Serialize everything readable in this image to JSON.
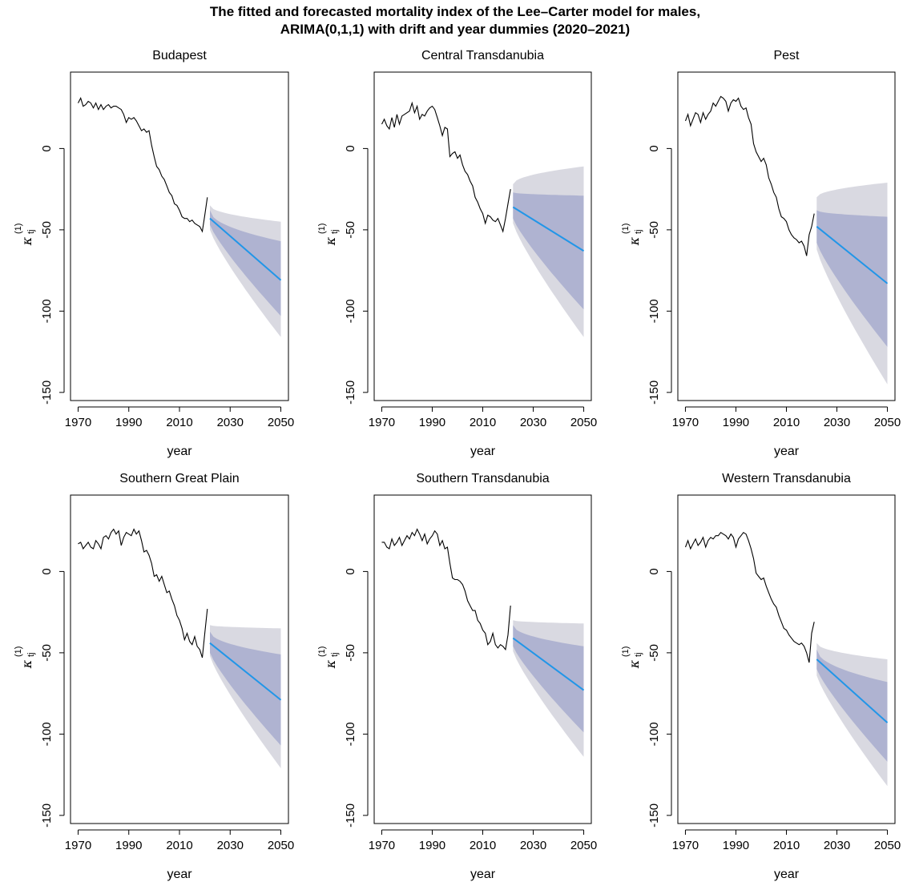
{
  "figure": {
    "title_line1": "The fitted and forecasted mortality index of the Lee–Carter model for males,",
    "title_line2": "ARIMA(0,1,1) with drift and year dummies (2020–2021)"
  },
  "colors": {
    "outer_band": "#d9d9e1",
    "inner_band": "#afb3d1",
    "forecast_line": "#2196e8",
    "fitted_line": "#000000"
  },
  "chart_data": [
    {
      "type": "line",
      "title": "Budapest",
      "xlabel": "year",
      "ylabel_main": "κ",
      "ylabel_super": "(1)",
      "ylabel_sub": "tj",
      "xlim": [
        1967,
        2053
      ],
      "ylim": [
        -155,
        47
      ],
      "xticks": [
        1970,
        1990,
        2010,
        2030,
        2050
      ],
      "yticks": [
        0,
        -50,
        -100,
        -150
      ],
      "fitted": {
        "x": [
          1970,
          1971,
          1972,
          1973,
          1974,
          1975,
          1976,
          1977,
          1978,
          1979,
          1980,
          1981,
          1982,
          1983,
          1984,
          1985,
          1986,
          1987,
          1988,
          1989,
          1990,
          1991,
          1992,
          1993,
          1994,
          1995,
          1996,
          1997,
          1998,
          1999,
          2000,
          2001,
          2002,
          2003,
          2004,
          2005,
          2006,
          2007,
          2008,
          2009,
          2010,
          2011,
          2012,
          2013,
          2014,
          2015,
          2016,
          2017,
          2018,
          2019,
          2020,
          2021
        ],
        "y": [
          28,
          31,
          26,
          27,
          29,
          28,
          25,
          28,
          24,
          27,
          24,
          26,
          27,
          25,
          26,
          26,
          25,
          24,
          21,
          16,
          19,
          18,
          19,
          17,
          14,
          11,
          12,
          10,
          11,
          2,
          -5,
          -11,
          -13,
          -17,
          -19,
          -23,
          -27,
          -29,
          -34,
          -35,
          -38,
          -42,
          -43,
          -43,
          -45,
          -44,
          -46,
          -47,
          -48,
          -51,
          -41,
          -30
        ]
      },
      "forecast": {
        "x": [
          2022,
          2050
        ],
        "mean": [
          -43,
          -81
        ],
        "inner_upper": [
          -38,
          -57
        ],
        "inner_lower": [
          -47,
          -103
        ],
        "outer_upper": [
          -35,
          -45
        ],
        "outer_lower": [
          -50,
          -116
        ]
      }
    },
    {
      "type": "line",
      "title": "Central Transdanubia",
      "xlabel": "year",
      "ylabel_main": "κ",
      "ylabel_super": "(1)",
      "ylabel_sub": "tj",
      "xlim": [
        1967,
        2053
      ],
      "ylim": [
        -155,
        47
      ],
      "xticks": [
        1970,
        1990,
        2010,
        2030,
        2050
      ],
      "yticks": [
        0,
        -50,
        -100,
        -150
      ],
      "fitted": {
        "x": [
          1970,
          1971,
          1972,
          1973,
          1974,
          1975,
          1976,
          1977,
          1978,
          1979,
          1980,
          1981,
          1982,
          1983,
          1984,
          1985,
          1986,
          1987,
          1988,
          1989,
          1990,
          1991,
          1992,
          1993,
          1994,
          1995,
          1996,
          1997,
          1998,
          1999,
          2000,
          2001,
          2002,
          2003,
          2004,
          2005,
          2006,
          2007,
          2008,
          2009,
          2010,
          2011,
          2012,
          2013,
          2014,
          2015,
          2016,
          2017,
          2018,
          2019,
          2020,
          2021
        ],
        "y": [
          15,
          18,
          14,
          12,
          19,
          13,
          21,
          15,
          20,
          21,
          22,
          23,
          28,
          22,
          26,
          18,
          21,
          20,
          23,
          25,
          26,
          24,
          19,
          14,
          8,
          13,
          12,
          -5,
          -3,
          -2,
          -6,
          -4,
          -10,
          -14,
          -16,
          -20,
          -23,
          -30,
          -33,
          -37,
          -40,
          -46,
          -41,
          -42,
          -44,
          -45,
          -43,
          -47,
          -51,
          -43,
          -34,
          -25
        ]
      },
      "forecast": {
        "x": [
          2022,
          2050
        ],
        "mean": [
          -36,
          -63
        ],
        "inner_upper": [
          -27,
          -29
        ],
        "inner_lower": [
          -43,
          -99
        ],
        "outer_upper": [
          -22,
          -11
        ],
        "outer_lower": [
          -46,
          -116
        ]
      }
    },
    {
      "type": "line",
      "title": "Pest",
      "xlabel": "year",
      "ylabel_main": "κ",
      "ylabel_super": "(1)",
      "ylabel_sub": "tj",
      "xlim": [
        1967,
        2053
      ],
      "ylim": [
        -155,
        47
      ],
      "xticks": [
        1970,
        1990,
        2010,
        2030,
        2050
      ],
      "yticks": [
        0,
        -50,
        -100,
        -150
      ],
      "fitted": {
        "x": [
          1970,
          1971,
          1972,
          1973,
          1974,
          1975,
          1976,
          1977,
          1978,
          1979,
          1980,
          1981,
          1982,
          1983,
          1984,
          1985,
          1986,
          1987,
          1988,
          1989,
          1990,
          1991,
          1992,
          1993,
          1994,
          1995,
          1996,
          1997,
          1998,
          1999,
          2000,
          2001,
          2002,
          2003,
          2004,
          2005,
          2006,
          2007,
          2008,
          2009,
          2010,
          2011,
          2012,
          2013,
          2014,
          2015,
          2016,
          2017,
          2018,
          2019,
          2020,
          2021
        ],
        "y": [
          17,
          21,
          14,
          18,
          22,
          21,
          16,
          22,
          18,
          21,
          23,
          28,
          26,
          29,
          32,
          31,
          29,
          23,
          28,
          30,
          29,
          31,
          26,
          24,
          25,
          19,
          15,
          3,
          -2,
          -5,
          -8,
          -6,
          -10,
          -18,
          -22,
          -27,
          -30,
          -37,
          -42,
          -43,
          -45,
          -50,
          -53,
          -55,
          -56,
          -58,
          -57,
          -60,
          -66,
          -53,
          -48,
          -40
        ]
      },
      "forecast": {
        "x": [
          2022,
          2050
        ],
        "mean": [
          -48,
          -83
        ],
        "inner_upper": [
          -38,
          -42
        ],
        "inner_lower": [
          -58,
          -122
        ],
        "outer_upper": [
          -30,
          -21
        ],
        "outer_lower": [
          -62,
          -145
        ]
      }
    },
    {
      "type": "line",
      "title": "Southern Great Plain",
      "xlabel": "year",
      "ylabel_main": "κ",
      "ylabel_super": "(1)",
      "ylabel_sub": "tj",
      "xlim": [
        1967,
        2053
      ],
      "ylim": [
        -155,
        47
      ],
      "xticks": [
        1970,
        1990,
        2010,
        2030,
        2050
      ],
      "yticks": [
        0,
        -50,
        -100,
        -150
      ],
      "fitted": {
        "x": [
          1970,
          1971,
          1972,
          1973,
          1974,
          1975,
          1976,
          1977,
          1978,
          1979,
          1980,
          1981,
          1982,
          1983,
          1984,
          1985,
          1986,
          1987,
          1988,
          1989,
          1990,
          1991,
          1992,
          1993,
          1994,
          1995,
          1996,
          1997,
          1998,
          1999,
          2000,
          2001,
          2002,
          2003,
          2004,
          2005,
          2006,
          2007,
          2008,
          2009,
          2010,
          2011,
          2012,
          2013,
          2014,
          2015,
          2016,
          2017,
          2018,
          2019,
          2020,
          2021
        ],
        "y": [
          17,
          18,
          14,
          16,
          18,
          15,
          14,
          19,
          17,
          14,
          21,
          22,
          20,
          24,
          26,
          23,
          25,
          16,
          21,
          24,
          23,
          22,
          26,
          23,
          25,
          19,
          12,
          13,
          10,
          5,
          -3,
          -2,
          -6,
          -3,
          -8,
          -13,
          -12,
          -17,
          -21,
          -27,
          -30,
          -35,
          -42,
          -38,
          -43,
          -45,
          -40,
          -46,
          -48,
          -53,
          -38,
          -23
        ]
      },
      "forecast": {
        "x": [
          2022,
          2050
        ],
        "mean": [
          -44,
          -79
        ],
        "inner_upper": [
          -37,
          -51
        ],
        "inner_lower": [
          -50,
          -107
        ],
        "outer_upper": [
          -33,
          -35
        ],
        "outer_lower": [
          -52,
          -121
        ]
      }
    },
    {
      "type": "line",
      "title": "Southern Transdanubia",
      "xlabel": "year",
      "ylabel_main": "κ",
      "ylabel_super": "(1)",
      "ylabel_sub": "tj",
      "xlim": [
        1967,
        2053
      ],
      "ylim": [
        -155,
        47
      ],
      "xticks": [
        1970,
        1990,
        2010,
        2030,
        2050
      ],
      "yticks": [
        0,
        -50,
        -100,
        -150
      ],
      "fitted": {
        "x": [
          1970,
          1971,
          1972,
          1973,
          1974,
          1975,
          1976,
          1977,
          1978,
          1979,
          1980,
          1981,
          1982,
          1983,
          1984,
          1985,
          1986,
          1987,
          1988,
          1989,
          1990,
          1991,
          1992,
          1993,
          1994,
          1995,
          1996,
          1997,
          1998,
          1999,
          2000,
          2001,
          2002,
          2003,
          2004,
          2005,
          2006,
          2007,
          2008,
          2009,
          2010,
          2011,
          2012,
          2013,
          2014,
          2015,
          2016,
          2017,
          2018,
          2019,
          2020,
          2021
        ],
        "y": [
          18,
          18,
          15,
          14,
          20,
          16,
          18,
          21,
          16,
          19,
          22,
          20,
          24,
          22,
          26,
          23,
          19,
          23,
          17,
          20,
          22,
          25,
          23,
          16,
          19,
          14,
          15,
          5,
          -4,
          -5,
          -5,
          -6,
          -8,
          -12,
          -18,
          -21,
          -24,
          -24,
          -30,
          -32,
          -36,
          -38,
          -45,
          -43,
          -38,
          -45,
          -47,
          -45,
          -46,
          -48,
          -39,
          -21
        ]
      },
      "forecast": {
        "x": [
          2022,
          2050
        ],
        "mean": [
          -41,
          -73
        ],
        "inner_upper": [
          -33,
          -46
        ],
        "inner_lower": [
          -46,
          -99
        ],
        "outer_upper": [
          -30,
          -32
        ],
        "outer_lower": [
          -49,
          -114
        ]
      }
    },
    {
      "type": "line",
      "title": "Western Transdanubia",
      "xlabel": "year",
      "ylabel_main": "κ",
      "ylabel_super": "(1)",
      "ylabel_sub": "tj",
      "xlim": [
        1967,
        2053
      ],
      "ylim": [
        -155,
        47
      ],
      "xticks": [
        1970,
        1990,
        2010,
        2030,
        2050
      ],
      "yticks": [
        0,
        -50,
        -100,
        -150
      ],
      "fitted": {
        "x": [
          1970,
          1971,
          1972,
          1973,
          1974,
          1975,
          1976,
          1977,
          1978,
          1979,
          1980,
          1981,
          1982,
          1983,
          1984,
          1985,
          1986,
          1987,
          1988,
          1989,
          1990,
          1991,
          1992,
          1993,
          1994,
          1995,
          1996,
          1997,
          1998,
          1999,
          2000,
          2001,
          2002,
          2003,
          2004,
          2005,
          2006,
          2007,
          2008,
          2009,
          2010,
          2011,
          2012,
          2013,
          2014,
          2015,
          2016,
          2017,
          2018,
          2019,
          2020,
          2021
        ],
        "y": [
          15,
          19,
          14,
          17,
          20,
          16,
          18,
          21,
          15,
          19,
          21,
          20,
          22,
          22,
          24,
          23,
          22,
          20,
          23,
          21,
          15,
          20,
          22,
          24,
          23,
          19,
          14,
          8,
          -1,
          -3,
          -5,
          -4,
          -9,
          -13,
          -17,
          -20,
          -22,
          -27,
          -31,
          -35,
          -36,
          -39,
          -41,
          -43,
          -44,
          -45,
          -44,
          -46,
          -50,
          -56,
          -38,
          -31
        ]
      },
      "forecast": {
        "x": [
          2022,
          2050
        ],
        "mean": [
          -54,
          -93
        ],
        "inner_upper": [
          -48,
          -68
        ],
        "inner_lower": [
          -60,
          -117
        ],
        "outer_upper": [
          -44,
          -54
        ],
        "outer_lower": [
          -64,
          -132
        ]
      }
    }
  ]
}
